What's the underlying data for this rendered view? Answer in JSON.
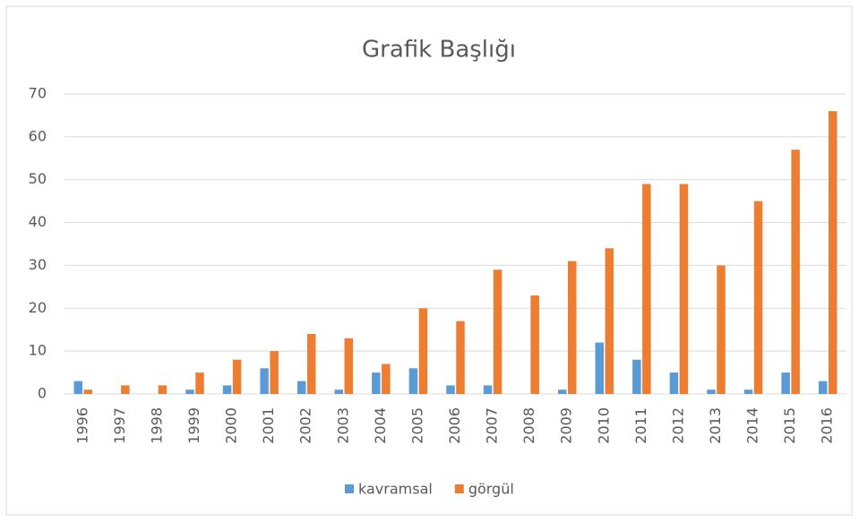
{
  "chart_data": {
    "type": "bar",
    "title": "Grafik Başlığı",
    "categories": [
      "1996",
      "1997",
      "1998",
      "1999",
      "2000",
      "2001",
      "2002",
      "2003",
      "2004",
      "2005",
      "2006",
      "2007",
      "2008",
      "2009",
      "2010",
      "2011",
      "2012",
      "2013",
      "2014",
      "2015",
      "2016"
    ],
    "series": [
      {
        "name": "kavramsal",
        "color": "#5b9bd5",
        "values": [
          3,
          0,
          0,
          1,
          2,
          6,
          3,
          1,
          5,
          6,
          2,
          2,
          0,
          1,
          12,
          8,
          5,
          1,
          1,
          5,
          3
        ]
      },
      {
        "name": "görgül",
        "color": "#ed7d31",
        "values": [
          1,
          2,
          2,
          5,
          8,
          10,
          14,
          13,
          7,
          20,
          17,
          29,
          23,
          31,
          34,
          49,
          49,
          30,
          45,
          57,
          66
        ]
      }
    ],
    "ylim": [
      0,
      70
    ],
    "yticks": [
      0,
      10,
      20,
      30,
      40,
      50,
      60,
      70
    ],
    "grid": true,
    "legend": "bottom"
  }
}
